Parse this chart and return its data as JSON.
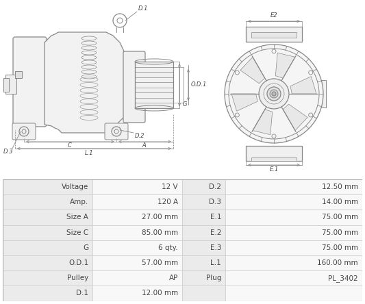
{
  "table_data": {
    "left_col": [
      [
        "Voltage",
        "12 V"
      ],
      [
        "Amp.",
        "120 A"
      ],
      [
        "Size A",
        "27.00 mm"
      ],
      [
        "Size C",
        "85.00 mm"
      ],
      [
        "G",
        "6 qty."
      ],
      [
        "O.D.1",
        "57.00 mm"
      ],
      [
        "Pulley",
        "AP"
      ],
      [
        "D.1",
        "12.00 mm"
      ]
    ],
    "right_col": [
      [
        "D.2",
        "12.50 mm"
      ],
      [
        "D.3",
        "14.00 mm"
      ],
      [
        "E.1",
        "75.00 mm"
      ],
      [
        "E.2",
        "75.00 mm"
      ],
      [
        "E.3",
        "75.00 mm"
      ],
      [
        "L.1",
        "160.00 mm"
      ],
      [
        "Plug",
        "PL_3402"
      ],
      [
        "",
        ""
      ]
    ]
  },
  "bg_color": "#ffffff",
  "table_row_bg1": "#ebebeb",
  "table_row_bg2": "#f8f8f8",
  "table_border_color": "#cccccc",
  "diagram_color": "#888888",
  "dim_color": "#888888",
  "text_color": "#444444",
  "font_size_table": 7.5,
  "font_size_label": 6.0
}
